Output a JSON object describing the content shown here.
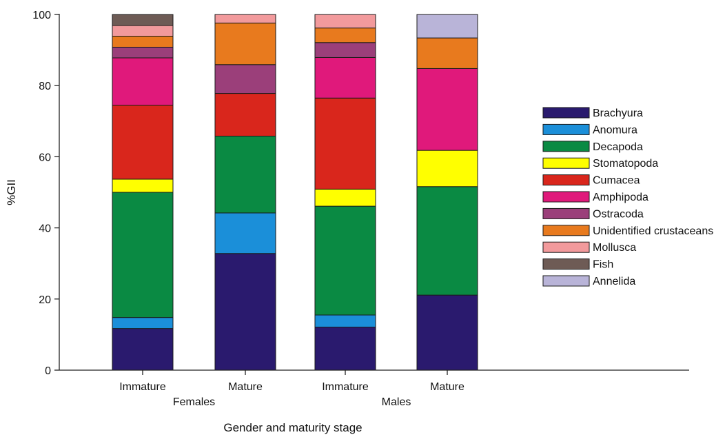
{
  "chart_data": {
    "type": "bar",
    "stacked": true,
    "categories": [
      "Immature",
      "Mature",
      "Immature",
      "Mature"
    ],
    "groups": [
      {
        "label": "Females",
        "categories": [
          0,
          1
        ]
      },
      {
        "label": "Males",
        "categories": [
          2,
          3
        ]
      }
    ],
    "series": [
      {
        "name": "Brachyura",
        "color": "#2a1a6e",
        "values": [
          11.7,
          32.8,
          12.1,
          21.1
        ]
      },
      {
        "name": "Anomura",
        "color": "#1b8fd9",
        "values": [
          3.1,
          11.4,
          3.4,
          0
        ]
      },
      {
        "name": "Decapoda",
        "color": "#0a8a43",
        "values": [
          35.2,
          21.6,
          30.6,
          30.5
        ]
      },
      {
        "name": "Stomatopoda",
        "color": "#ffff00",
        "values": [
          3.7,
          0,
          4.8,
          10.2
        ]
      },
      {
        "name": "Cumacea",
        "color": "#d9261c",
        "values": [
          20.8,
          12,
          25.6,
          0
        ]
      },
      {
        "name": "Amphipoda",
        "color": "#e0197b",
        "values": [
          13.3,
          0,
          11.4,
          23
        ]
      },
      {
        "name": "Ostracoda",
        "color": "#9b3f7a",
        "values": [
          3,
          8.1,
          4.2,
          0
        ]
      },
      {
        "name": "Unidentified crustaceans",
        "color": "#e87a1e",
        "values": [
          3.1,
          11.7,
          4.1,
          8.6
        ]
      },
      {
        "name": "Mollusca",
        "color": "#f29a9c",
        "values": [
          3,
          2.4,
          3.8,
          0
        ]
      },
      {
        "name": "Fish",
        "color": "#6e5b55",
        "values": [
          3.1,
          0,
          0,
          0
        ]
      },
      {
        "name": "Annelida",
        "color": "#b9b4d8",
        "values": [
          0,
          0,
          0,
          6.6
        ]
      }
    ],
    "title": "",
    "xlabel": "Gender and maturity stage",
    "ylabel": "%GII",
    "ylim": [
      0,
      100
    ],
    "yticks": [
      0,
      20,
      40,
      60,
      80,
      100
    ],
    "grid": false,
    "legend_position": "right"
  }
}
